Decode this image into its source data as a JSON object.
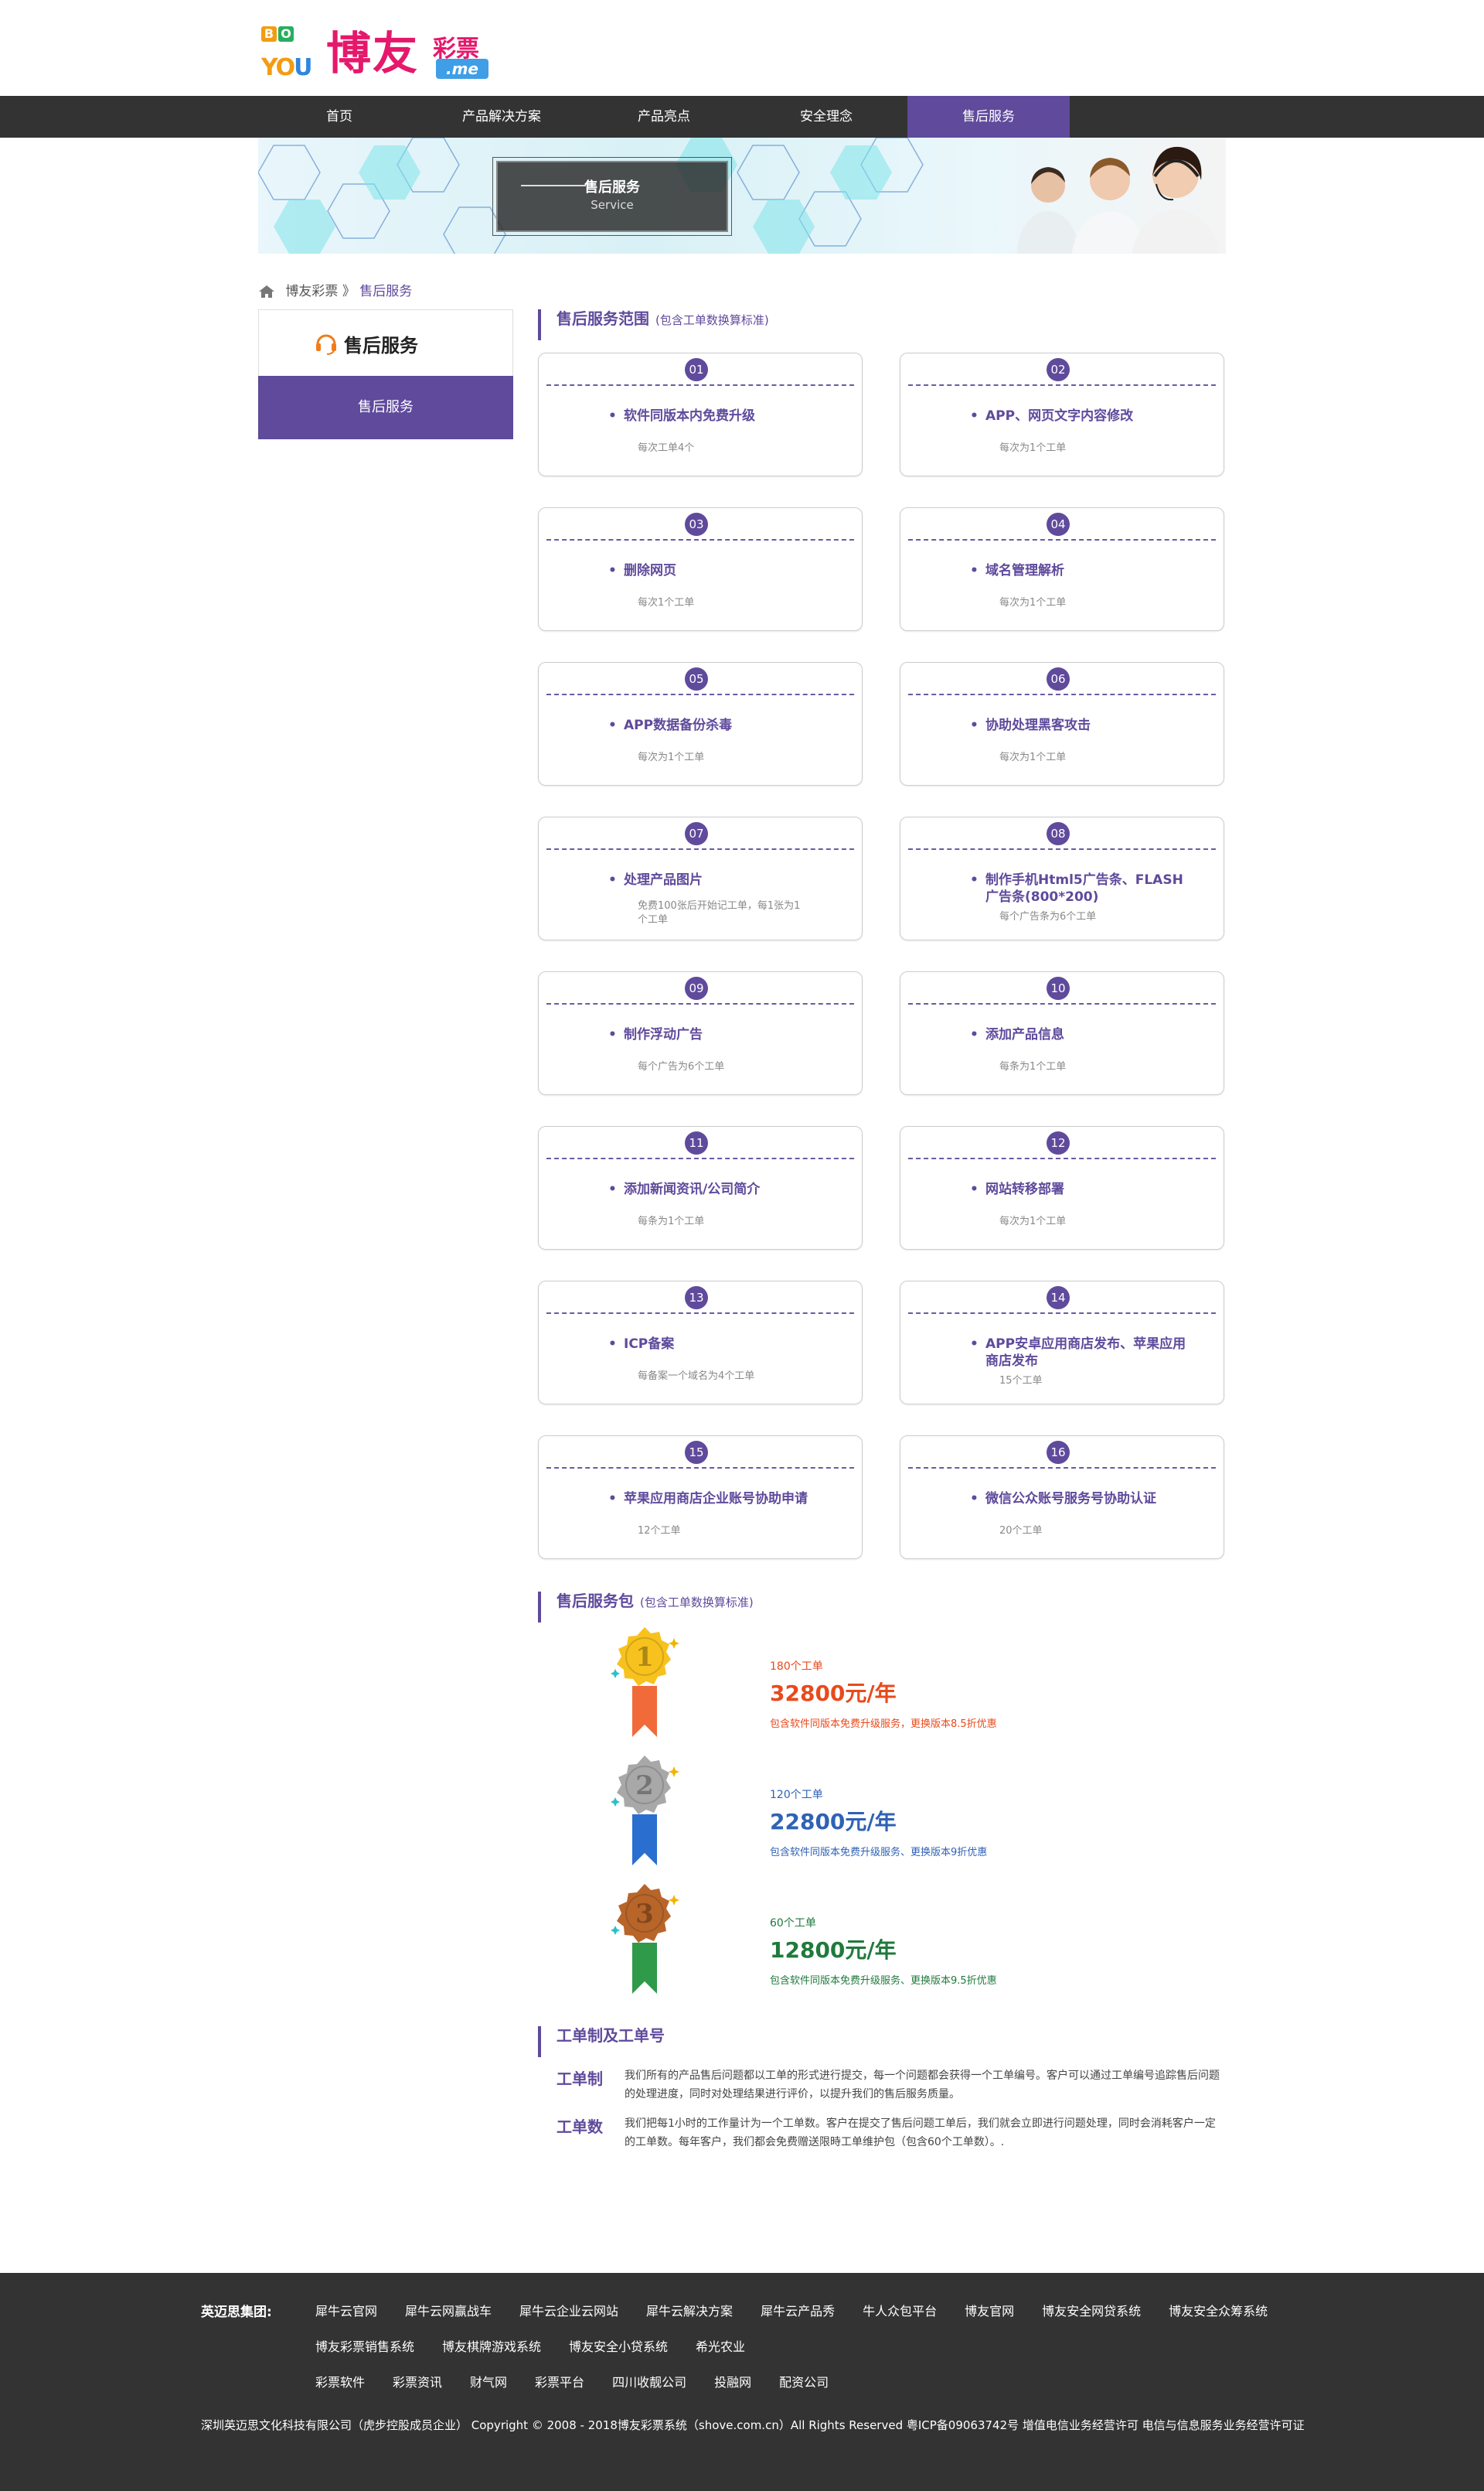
{
  "logo": {
    "you": [
      "YO",
      "",
      "U"
    ],
    "cn": "博友",
    "cp": "彩票",
    "me": ".me"
  },
  "nav": [
    "首页",
    "产品解决方案",
    "产品亮点",
    "安全理念",
    "售后服务"
  ],
  "banner": {
    "title": "售后服务",
    "subtitle": "Service"
  },
  "breadcrumb": {
    "home": "博友彩票",
    "sep": "》",
    "current": "售后服务"
  },
  "sidebar": {
    "title": "售后服务",
    "item": "售后服务"
  },
  "scope": {
    "title": "售后服务范围",
    "note": "(包含工单数换算标准)",
    "items": [
      {
        "num": "01",
        "name": "软件同版本内免费升级",
        "note": "每次工单4个"
      },
      {
        "num": "02",
        "name": "APP、网页文字内容修改",
        "note": "每次为1个工单"
      },
      {
        "num": "03",
        "name": "删除网页",
        "note": "每次1个工单"
      },
      {
        "num": "04",
        "name": "域名管理解析",
        "note": "每次为1个工单"
      },
      {
        "num": "05",
        "name": "APP数据备份杀毒",
        "note": "每次为1个工单"
      },
      {
        "num": "06",
        "name": "协助处理黑客攻击",
        "note": "每次为1个工单"
      },
      {
        "num": "07",
        "name": "处理产品图片",
        "note": "免费100张后开始记工单，每1张为1个工单"
      },
      {
        "num": "08",
        "name": "制作手机Html5广告条、FLASH广告条(800*200)",
        "note": "每个广告条为6个工单"
      },
      {
        "num": "09",
        "name": "制作浮动广告",
        "note": "每个广告为6个工单"
      },
      {
        "num": "10",
        "name": "添加产品信息",
        "note": "每条为1个工单"
      },
      {
        "num": "11",
        "name": "添加新闻资讯/公司简介",
        "note": "每条为1个工单"
      },
      {
        "num": "12",
        "name": "网站转移部署",
        "note": "每次为1个工单"
      },
      {
        "num": "13",
        "name": "ICP备案",
        "note": "每备案一个域名为4个工单"
      },
      {
        "num": "14",
        "name": "APP安卓应用商店发布、苹果应用商店发布",
        "note": "15个工单"
      },
      {
        "num": "15",
        "name": "苹果应用商店企业账号协助申请",
        "note": "12个工单"
      },
      {
        "num": "16",
        "name": "微信公众账号服务号协助认证",
        "note": "20个工单"
      }
    ]
  },
  "packages": {
    "title": "售后服务包",
    "note": "(包含工单数换算标准)",
    "items": [
      {
        "rank": "1",
        "count": "180个工单",
        "price": "32800元/年",
        "desc": "包含软件同版本免费升级服务，更换版本8.5折优惠",
        "color": "#e84a1c",
        "medal": "#f7c21e",
        "ribbon": "#f06a3a"
      },
      {
        "rank": "2",
        "count": "120个工单",
        "price": "22800元/年",
        "desc": "包含软件同版本免费升级服务、更换版本9折优惠",
        "color": "#2f62b5",
        "medal": "#a8a8a8",
        "ribbon": "#2a6fd0"
      },
      {
        "rank": "3",
        "count": "60个工单",
        "price": "12800元/年",
        "desc": "包含软件同版本免费升级服务、更换版本9.5折优惠",
        "color": "#1f7a3c",
        "medal": "#b8652a",
        "ribbon": "#2e9a4a"
      }
    ]
  },
  "tickets": {
    "title": "工单制及工单号",
    "rules": [
      {
        "k": "工单制",
        "v": "我们所有的产品售后问题都以工单的形式进行提交，每一个问题都会获得一个工单编号。客户可以通过工单编号追踪售后问题的处理进度，同时对处理结果进行评价，以提升我们的售后服务质量。"
      },
      {
        "k": "工单数",
        "v": "我们把每1小时的工作量计为一个工单数。客户在提交了售后问题工单后，我们就会立即进行问题处理，同时会消耗客户一定的工单数。每年客户，我们都会免费赠送限時工单维护包（包含60个工单数）。."
      }
    ]
  },
  "footer": {
    "label": "英迈思集团:",
    "rows": [
      [
        "犀牛云官网",
        "犀牛云网赢战车",
        "犀牛云企业云网站",
        "犀牛云解决方案",
        "犀牛云产品秀",
        "牛人众包平台",
        "博友官网",
        "博友安全网贷系统",
        "博友安全众筹系统"
      ],
      [
        "博友彩票销售系统",
        "博友棋牌游戏系统",
        "博友安全小贷系统",
        "希光农业"
      ],
      [
        "彩票软件",
        "彩票资讯",
        "财气网",
        "彩票平台",
        "四川收靓公司",
        "投融网",
        "配资公司"
      ]
    ],
    "copyright": "深圳英迈思文化科技有限公司（虎步控股成员企业）  Copyright © 2008 - 2018博友彩票系统（shove.com.cn）All Rights Reserved 粤ICP备09063742号  增值电信业务经营许可  电信与信息服务业务经营许可证"
  }
}
